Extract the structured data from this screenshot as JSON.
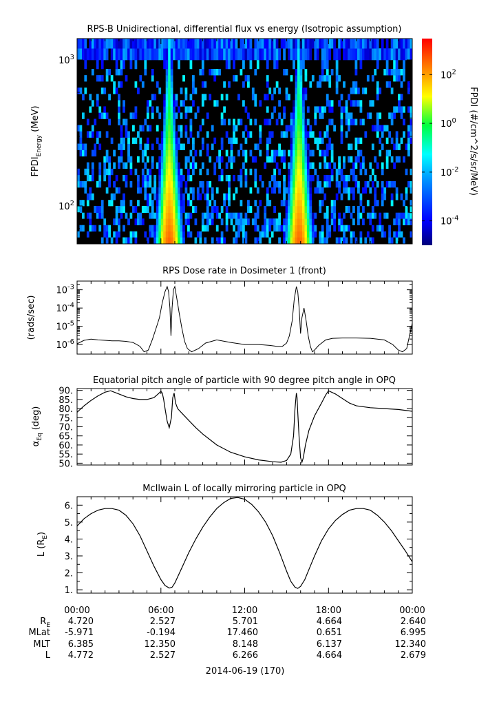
{
  "chart_data": [
    {
      "type": "heatmap",
      "title": "RPS-B  Unidirectional, differential flux vs energy (Isotropic assumption)",
      "ylabel_main": "FPDI",
      "ylabel_sub": "Energy",
      "ylabel_unit": "(MeV)",
      "yscale": "log",
      "ylim": [
        55,
        1400
      ],
      "yticks": [
        {
          "value": 100,
          "base": "10",
          "exp": "2"
        },
        {
          "value": 1000,
          "base": "10",
          "exp": "3"
        }
      ],
      "xlim_hours": [
        0,
        24
      ],
      "energy_edges_mev": [
        55,
        61,
        67,
        74,
        82,
        90,
        100,
        110,
        122,
        134,
        148,
        163,
        180,
        199,
        219,
        242,
        267,
        294,
        325,
        358,
        395,
        436,
        481,
        531,
        585,
        646,
        713,
        786,
        868,
        1000,
        1200,
        1400
      ],
      "radiation_belt_peaks_hours": [
        6.6,
        15.9
      ],
      "colorbar": {
        "label": "FPDI (#/cm^2/s/sr/MeV)",
        "scale": "log",
        "range": [
          1e-05,
          3000
        ],
        "ticks": [
          {
            "value": 0.0001,
            "base": "10",
            "exp": "-4"
          },
          {
            "value": 0.01,
            "base": "10",
            "exp": "-2"
          },
          {
            "value": 1,
            "base": "10",
            "exp": "0"
          },
          {
            "value": 100,
            "base": "10",
            "exp": "2"
          }
        ]
      }
    },
    {
      "type": "line",
      "title": "RPS  Dose rate in Dosimeter 1 (front)",
      "ylabel": "(rads/sec)",
      "yscale": "log",
      "ylim": [
        3e-07,
        0.003
      ],
      "yticks": [
        {
          "value": 1e-06,
          "base": "10",
          "exp": "-6"
        },
        {
          "value": 1e-05,
          "base": "10",
          "exp": "-5"
        },
        {
          "value": 0.0001,
          "base": "10",
          "exp": "-4"
        },
        {
          "value": 0.001,
          "base": "10",
          "exp": "-3"
        }
      ],
      "x_hours": [
        0,
        0.5,
        1,
        1.5,
        2,
        2.5,
        3,
        3.5,
        4,
        4.5,
        4.8,
        5.1,
        5.4,
        5.7,
        5.9,
        6.1,
        6.3,
        6.45,
        6.55,
        6.65,
        6.72,
        6.8,
        6.9,
        7.0,
        7.15,
        7.3,
        7.5,
        7.7,
        7.9,
        8.2,
        8.7,
        9.2,
        10,
        11,
        12,
        13,
        13.8,
        14.3,
        14.7,
        15.0,
        15.2,
        15.4,
        15.55,
        15.7,
        15.8,
        15.9,
        16.0,
        16.1,
        16.25,
        16.4,
        16.55,
        16.7,
        16.85,
        17.0,
        17.3,
        17.8,
        18.3,
        19,
        20,
        21,
        22,
        22.6,
        23.0,
        23.3,
        23.6,
        24
      ],
      "values": [
        1.1e-06,
        1.7e-06,
        2e-06,
        1.8e-06,
        1.7e-06,
        1.6e-06,
        1.6e-06,
        1.5e-06,
        1.3e-06,
        8e-07,
        4e-07,
        5e-07,
        2e-06,
        1e-05,
        3e-05,
        0.0002,
        0.0008,
        0.0015,
        0.0008,
        0.0001,
        3e-06,
        0.0001,
        0.001,
        0.0015,
        0.0003,
        6e-05,
        8e-06,
        1.5e-06,
        6e-07,
        4e-07,
        6e-07,
        1.2e-06,
        1.8e-06,
        1.3e-06,
        1e-06,
        1e-06,
        9e-07,
        8e-07,
        8e-07,
        1.2e-06,
        3e-06,
        2e-05,
        0.0003,
        0.0015,
        0.0008,
        0.0001,
        4e-06,
        3e-05,
        0.0001,
        2e-05,
        3e-06,
        8e-07,
        4e-07,
        5e-07,
        9e-07,
        1.8e-06,
        2.2e-06,
        2.3e-06,
        2.3e-06,
        2.2e-06,
        1.8e-06,
        1e-06,
        5e-07,
        4e-07,
        6e-07,
        1.5e-05
      ]
    },
    {
      "type": "line",
      "title": "Equatorial pitch angle of particle with 90 degree pitch angle in OPQ",
      "ylabel": "α",
      "ylabel_sub": "Eq",
      "ylabel_unit": "(deg)",
      "ylim": [
        49,
        91
      ],
      "yticks": [
        90,
        85,
        80,
        75,
        70,
        65,
        60,
        55,
        50
      ],
      "ytick_labels": [
        "90.",
        "85.",
        "80.",
        "75.",
        "70.",
        "65.",
        "60.",
        "55.",
        "50."
      ],
      "x_hours": [
        0,
        0.5,
        1,
        1.5,
        2,
        2.4,
        3,
        3.5,
        4,
        4.5,
        5,
        5.5,
        5.8,
        6.0,
        6.1,
        6.2,
        6.3,
        6.45,
        6.6,
        6.75,
        6.85,
        6.95,
        7.05,
        7.2,
        7.5,
        8,
        8.5,
        9,
        9.5,
        10,
        11,
        12,
        13,
        14,
        14.6,
        15.0,
        15.3,
        15.5,
        15.6,
        15.7,
        15.75,
        15.8,
        15.9,
        16.0,
        16.1,
        16.2,
        16.35,
        16.6,
        17,
        17.5,
        17.8,
        18,
        18.5,
        19,
        19.5,
        20,
        21,
        22,
        23,
        24
      ],
      "values": [
        78,
        81.5,
        84.5,
        87,
        89,
        89.8,
        88,
        86.5,
        85.5,
        85,
        85,
        86,
        88,
        89.5,
        88.5,
        85,
        80,
        73,
        69.5,
        75,
        86,
        88.5,
        83,
        80,
        77.5,
        73.5,
        69.5,
        66,
        63,
        60,
        56,
        53.5,
        51.8,
        50.8,
        50.5,
        51.5,
        55,
        65,
        80,
        88.5,
        86,
        78,
        64,
        53,
        50.5,
        53,
        60,
        68,
        76,
        83,
        87.5,
        89.8,
        88,
        85.5,
        83,
        81.5,
        80.5,
        80,
        79.5,
        78.5
      ]
    },
    {
      "type": "line",
      "title": "McIlwain L of locally mirroring particle in OPQ",
      "ylabel": "L (R",
      "ylabel_sub": "E",
      "ylabel_unit": ")",
      "ylim": [
        0.8,
        6.5
      ],
      "yticks": [
        1,
        2,
        3,
        4,
        5,
        6
      ],
      "ytick_labels": [
        "1.",
        "2.",
        "3.",
        "4.",
        "5.",
        "6."
      ],
      "x_hours": [
        0,
        0.5,
        1,
        1.5,
        2,
        2.5,
        3,
        3.5,
        4,
        4.5,
        5,
        5.5,
        6,
        6.3,
        6.6,
        6.8,
        7.0,
        7.5,
        8,
        8.5,
        9,
        9.5,
        10,
        10.5,
        11,
        11.5,
        12,
        12.5,
        13,
        13.5,
        14,
        14.5,
        15,
        15.3,
        15.6,
        15.8,
        16.0,
        16.3,
        16.7,
        17,
        17.5,
        18,
        18.5,
        19,
        19.5,
        20,
        20.5,
        21,
        21.5,
        22,
        22.5,
        23,
        23.5,
        24
      ],
      "values": [
        4.77,
        5.2,
        5.5,
        5.7,
        5.8,
        5.8,
        5.7,
        5.4,
        4.9,
        4.2,
        3.3,
        2.4,
        1.6,
        1.25,
        1.1,
        1.15,
        1.4,
        2.3,
        3.2,
        4.0,
        4.7,
        5.3,
        5.8,
        6.15,
        6.4,
        6.45,
        6.35,
        6.05,
        5.6,
        5.0,
        4.2,
        3.2,
        2.1,
        1.5,
        1.15,
        1.08,
        1.2,
        1.6,
        2.4,
        3.0,
        3.9,
        4.6,
        5.1,
        5.45,
        5.7,
        5.8,
        5.8,
        5.7,
        5.4,
        5.0,
        4.5,
        3.9,
        3.3,
        2.65
      ]
    }
  ],
  "xaxis": {
    "tick_labels": [
      "00:00",
      "06:00",
      "12:00",
      "18:00",
      "00:00"
    ],
    "row_labels": [
      {
        "main": "R",
        "sub": "E"
      },
      {
        "main": "MLat",
        "sub": ""
      },
      {
        "main": "MLT",
        "sub": ""
      },
      {
        "main": "L",
        "sub": ""
      }
    ],
    "rows": [
      [
        "4.720",
        "2.527",
        "5.701",
        "4.664",
        "2.640"
      ],
      [
        "-5.971",
        "-0.194",
        "17.460",
        "0.651",
        "6.995"
      ],
      [
        "6.385",
        "12.350",
        "8.148",
        "6.137",
        "12.340"
      ],
      [
        "4.772",
        "2.527",
        "6.266",
        "4.664",
        "2.679"
      ]
    ],
    "date_label": "2014-06-19 (170)"
  }
}
